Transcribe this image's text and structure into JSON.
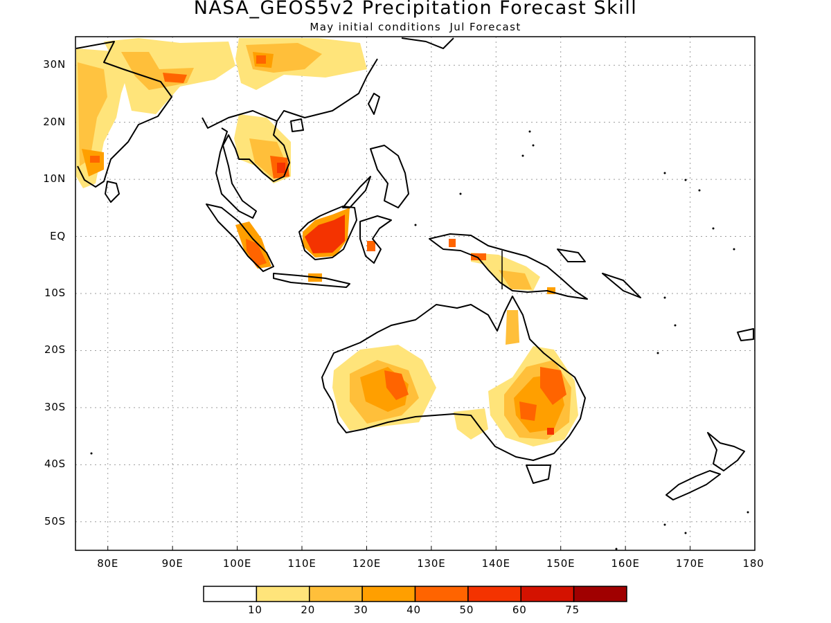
{
  "title": "NASA_GEOS5v2 Precipitation Forecast Skill",
  "subtitle": "May initial conditions  Jul Forecast",
  "map": {
    "region": "Asia-Pacific",
    "lon_range_deg": [
      75,
      180
    ],
    "lat_range_deg": [
      -55,
      35
    ],
    "gridlines": "dotted",
    "lat_labels": [
      "30N",
      "20N",
      "10N",
      "EQ",
      "10S",
      "20S",
      "30S",
      "40S",
      "50S"
    ],
    "lon_labels": [
      "80E",
      "90E",
      "100E",
      "110E",
      "120E",
      "130E",
      "140E",
      "150E",
      "160E",
      "170E",
      "180"
    ]
  },
  "colorbar": {
    "labels": [
      "10",
      "20",
      "30",
      "40",
      "50",
      "60",
      "75"
    ],
    "colors": [
      "#ffffff",
      "#ffe47a",
      "#ffbf3a",
      "#ff9f00",
      "#ff6400",
      "#f43300",
      "#d41200",
      "#a00000"
    ]
  }
}
